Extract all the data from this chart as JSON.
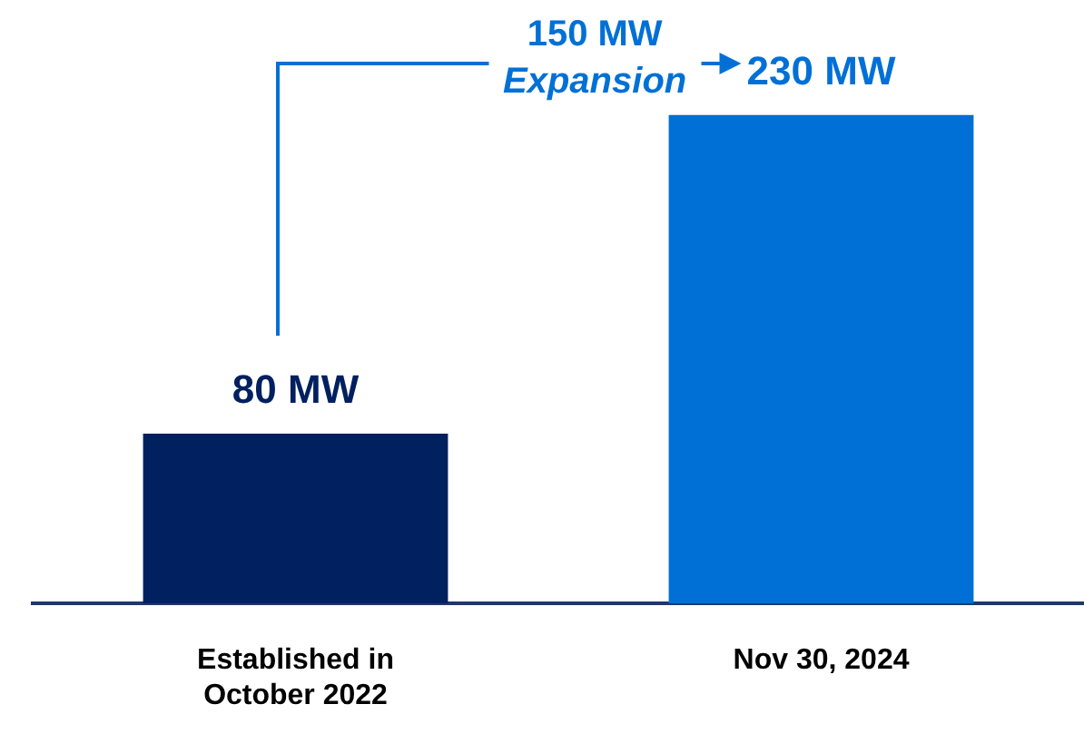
{
  "chart_data": {
    "type": "bar",
    "categories": [
      "Established in October 2022",
      "Nov 30, 2024"
    ],
    "values": [
      80,
      230
    ],
    "colors": [
      "#002060",
      "#0070d6"
    ],
    "value_labels": [
      "80 MW",
      "230 MW"
    ],
    "annotations": [
      "150 MW\nExpansion"
    ],
    "grid": false,
    "legend": false,
    "tick_labels": "x"
  }
}
